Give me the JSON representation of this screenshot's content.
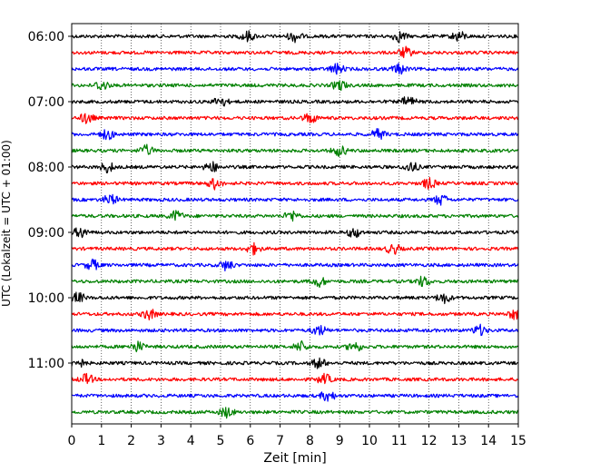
{
  "chart_data": {
    "type": "line",
    "xlabel": "Zeit  [min]",
    "ylabel": "UTC (Lokalzeit = UTC + 01:00)",
    "xlim": [
      0,
      15
    ],
    "x_ticks": [
      0,
      1,
      2,
      3,
      4,
      5,
      6,
      7,
      8,
      9,
      10,
      11,
      12,
      13,
      14,
      15
    ],
    "y_ticks": [
      {
        "row": 0,
        "label": "06:00"
      },
      {
        "row": 4,
        "label": "07:00"
      },
      {
        "row": 8,
        "label": "08:00"
      },
      {
        "row": 12,
        "label": "09:00"
      },
      {
        "row": 16,
        "label": "10:00"
      },
      {
        "row": 20,
        "label": "11:00"
      }
    ],
    "grid": "vertical dotted lines at each minute",
    "row_minutes": 15,
    "color_cycle": [
      "#000000",
      "#ff0000",
      "#0000ff",
      "#008000"
    ],
    "rows": [
      {
        "start": "06:00",
        "events": [
          5.9,
          7.5,
          11.0,
          13.0
        ]
      },
      {
        "start": "06:15",
        "events": [
          11.2
        ]
      },
      {
        "start": "06:30",
        "events": [
          8.9,
          11.0
        ]
      },
      {
        "start": "06:45",
        "events": [
          1.0,
          9.0
        ]
      },
      {
        "start": "07:00",
        "events": [
          5.0,
          11.3
        ]
      },
      {
        "start": "07:15",
        "events": [
          0.5,
          8.0
        ]
      },
      {
        "start": "07:30",
        "events": [
          1.2,
          10.3
        ]
      },
      {
        "start": "07:45",
        "events": [
          2.5,
          9.0
        ]
      },
      {
        "start": "08:00",
        "events": [
          1.2,
          4.7,
          11.4
        ]
      },
      {
        "start": "08:15",
        "events": [
          4.8,
          12.0
        ]
      },
      {
        "start": "08:30",
        "events": [
          1.3,
          12.4
        ]
      },
      {
        "start": "08:45",
        "events": [
          3.5,
          7.4
        ]
      },
      {
        "start": "09:00",
        "events": [
          0.3,
          9.5
        ]
      },
      {
        "start": "09:15",
        "events": [
          6.1,
          10.8
        ]
      },
      {
        "start": "09:30",
        "events": [
          0.7,
          5.2
        ]
      },
      {
        "start": "09:45",
        "events": [
          8.3,
          11.8
        ]
      },
      {
        "start": "10:00",
        "events": [
          0.2,
          12.5
        ]
      },
      {
        "start": "10:15",
        "events": [
          2.6,
          14.9
        ]
      },
      {
        "start": "10:30",
        "events": [
          8.3,
          13.7
        ]
      },
      {
        "start": "10:45",
        "events": [
          2.2,
          7.7,
          9.5
        ]
      },
      {
        "start": "11:00",
        "events": [
          0.2,
          8.3
        ]
      },
      {
        "start": "11:15",
        "events": [
          0.5,
          8.5
        ]
      },
      {
        "start": "11:30",
        "events": [
          8.6
        ]
      },
      {
        "start": "11:45",
        "events": [
          5.2
        ]
      }
    ]
  }
}
